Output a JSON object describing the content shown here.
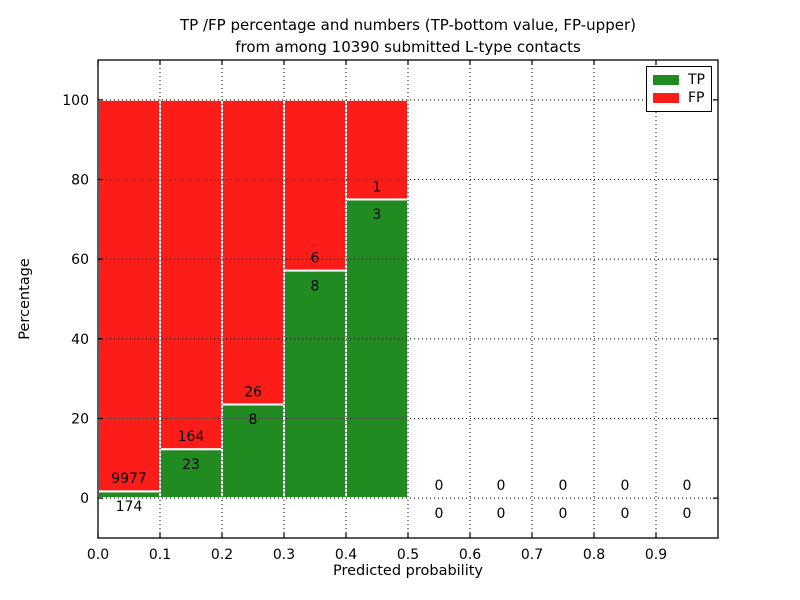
{
  "figure": {
    "title_line1": "TP /FP percentage and numbers (TP-bottom value, FP-upper)",
    "title_line2": "from among 10390 submitted L-type contacts",
    "xlabel": "Predicted probability",
    "ylabel": "Percentage"
  },
  "legend": {
    "items": [
      {
        "label": "TP",
        "color": "#218a21"
      },
      {
        "label": "FP",
        "color": "#fd1d18"
      }
    ]
  },
  "colors": {
    "tp": "#218a21",
    "fp": "#fd1d18",
    "grid": "#000000",
    "axis": "#000000",
    "bar_edge": "#ffffff",
    "background": "#ffffff"
  },
  "chart_data": {
    "type": "bar",
    "stacked": true,
    "title": "TP /FP percentage and numbers (TP-bottom value, FP-upper) from among 10390 submitted L-type contacts",
    "xlabel": "Predicted probability",
    "ylabel": "Percentage",
    "total_submitted": 10390,
    "bin_edges": [
      0.0,
      0.1,
      0.2,
      0.3,
      0.4,
      0.5,
      0.6,
      0.7,
      0.8,
      0.9,
      1.0
    ],
    "series": [
      {
        "name": "TP",
        "color": "#218a21",
        "counts": [
          174,
          23,
          8,
          8,
          3,
          0,
          0,
          0,
          0,
          0
        ],
        "percent": [
          1.71,
          12.3,
          23.53,
          57.14,
          75.0,
          0,
          0,
          0,
          0,
          0
        ]
      },
      {
        "name": "FP",
        "color": "#fd1d18",
        "counts": [
          9977,
          164,
          26,
          6,
          1,
          0,
          0,
          0,
          0,
          0
        ],
        "percent": [
          98.29,
          87.7,
          76.47,
          42.86,
          25.0,
          0,
          0,
          0,
          0,
          0
        ]
      }
    ],
    "annotation_rule": "FP count just above TP/FP boundary, TP count just below boundary",
    "xticks": {
      "values": [
        0.0,
        0.1,
        0.2,
        0.3,
        0.4,
        0.5,
        0.6,
        0.7,
        0.8,
        0.9
      ],
      "labels": [
        "0.0",
        "0.1",
        "0.2",
        "0.3",
        "0.4",
        "0.5",
        "0.6",
        "0.7",
        "0.8",
        "0.9"
      ]
    },
    "yticks": {
      "values": [
        0,
        20,
        40,
        60,
        80,
        100
      ],
      "labels": [
        "0",
        "20",
        "40",
        "60",
        "80",
        "100"
      ]
    },
    "xlim": [
      0.0,
      1.0
    ],
    "ylim": [
      -10,
      110
    ],
    "grid": true,
    "grid_style": "dotted",
    "legend_position": "upper right",
    "label_offsets_pct": {
      "upper": 3.3,
      "lower": -3.7
    }
  }
}
